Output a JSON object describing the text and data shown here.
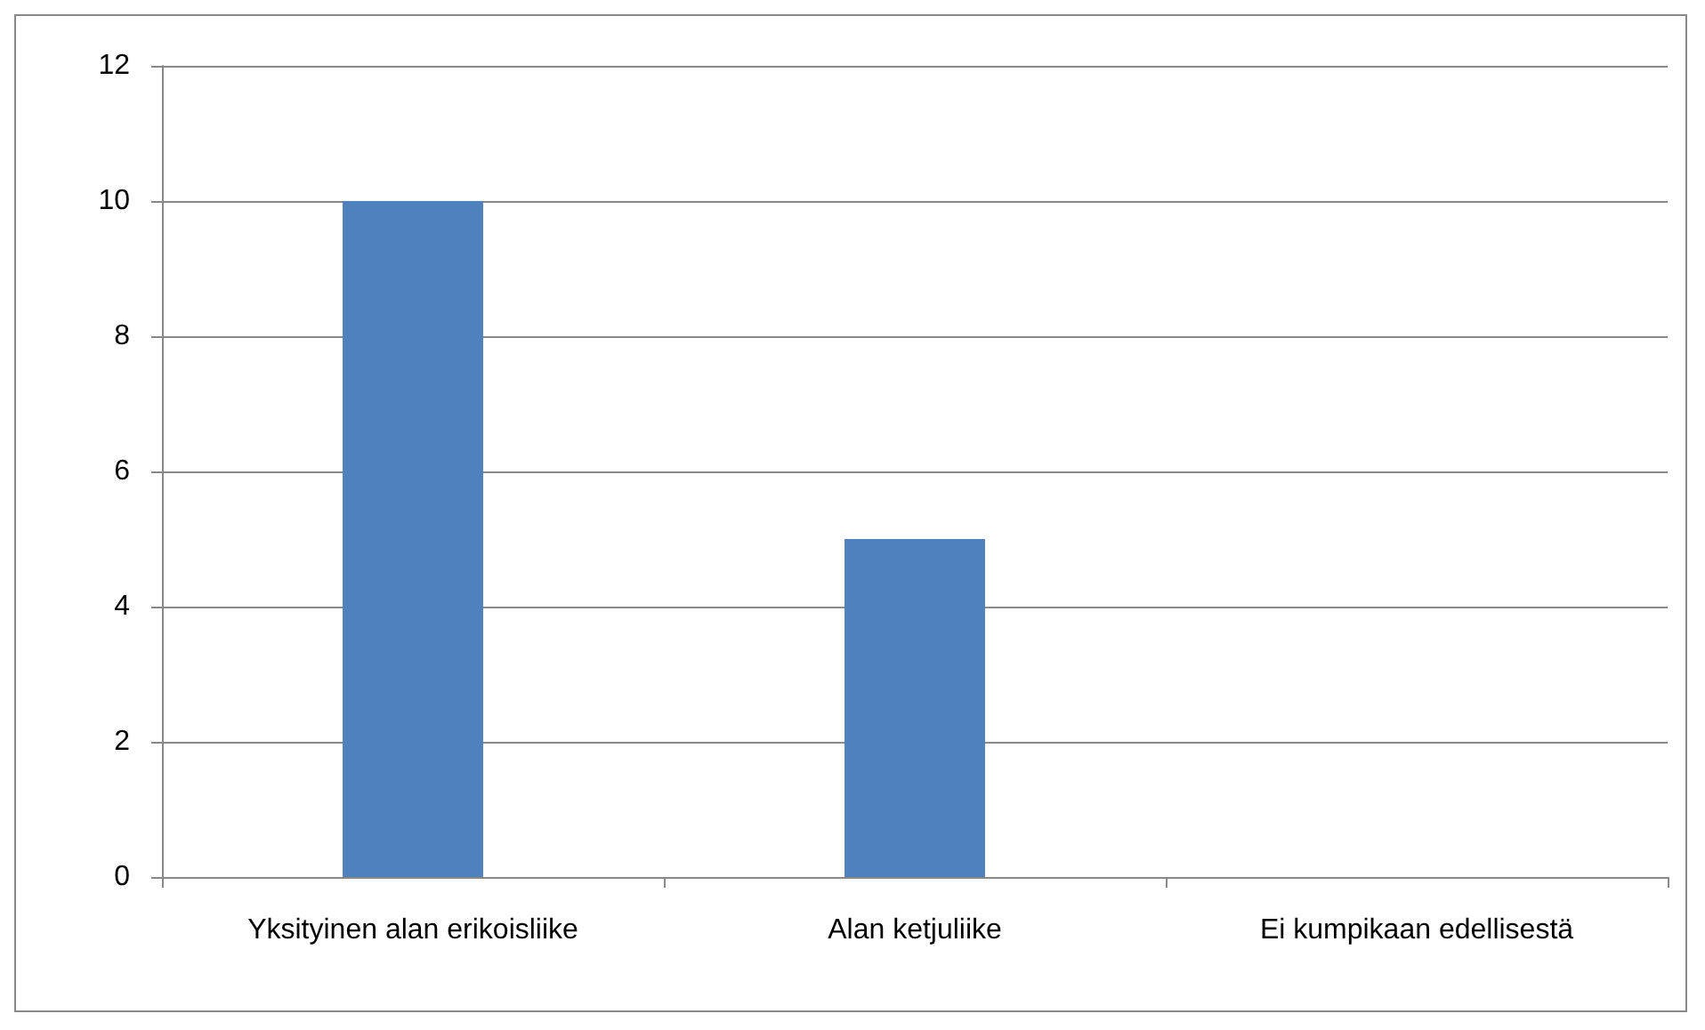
{
  "chart_data": {
    "type": "bar",
    "categories": [
      "Yksityinen alan erikoisliike",
      "Alan ketjuliike",
      "Ei kumpikaan edellisestä"
    ],
    "values": [
      10,
      5,
      0
    ],
    "color": "#4f81bd",
    "ylim": [
      0,
      12
    ],
    "yticks": [
      0,
      2,
      4,
      6,
      8,
      10,
      12
    ],
    "grid": "y"
  }
}
